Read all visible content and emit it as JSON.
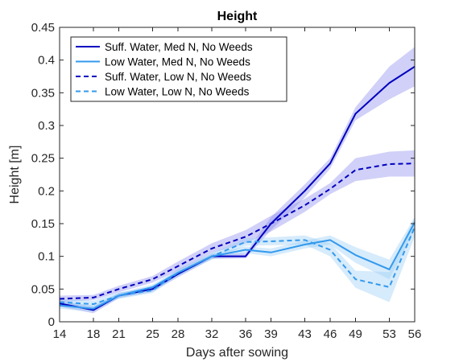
{
  "chart_data": {
    "type": "line",
    "title": "Height",
    "xlabel": "Days after sowing",
    "ylabel": "Height [m]",
    "xlim": [
      14,
      56
    ],
    "ylim": [
      0,
      0.45
    ],
    "xticks": [
      14,
      18,
      21,
      25,
      28,
      32,
      36,
      39,
      43,
      46,
      49,
      53,
      56
    ],
    "yticks": [
      0,
      0.05,
      0.1,
      0.15,
      0.2,
      0.25,
      0.3,
      0.35,
      0.4,
      0.45
    ],
    "grid": false,
    "legend_position": "top-left",
    "x": [
      14,
      18,
      21,
      25,
      28,
      32,
      36,
      39,
      43,
      46,
      49,
      53,
      56
    ],
    "series": [
      {
        "name": "Suff. Water, Med N, No Weeds",
        "color": "#0000c0",
        "line_style": "solid",
        "band_color": "#8a8aee",
        "values": [
          0.028,
          0.018,
          0.04,
          0.05,
          0.073,
          0.1,
          0.1,
          0.15,
          0.2,
          0.242,
          0.318,
          0.365,
          0.39
        ],
        "lower": [
          0.023,
          0.013,
          0.036,
          0.046,
          0.068,
          0.096,
          0.097,
          0.14,
          0.19,
          0.234,
          0.308,
          0.34,
          0.36
        ],
        "upper": [
          0.033,
          0.023,
          0.044,
          0.054,
          0.078,
          0.104,
          0.105,
          0.16,
          0.21,
          0.25,
          0.328,
          0.39,
          0.42
        ]
      },
      {
        "name": "Low Water, Med N, No Weeds",
        "color": "#3399ee",
        "line_style": "solid",
        "band_color": "#99ccf5",
        "values": [
          0.025,
          0.02,
          0.04,
          0.053,
          0.075,
          0.1,
          0.11,
          0.106,
          0.118,
          0.125,
          0.102,
          0.08,
          0.152
        ],
        "lower": [
          0.02,
          0.015,
          0.036,
          0.049,
          0.07,
          0.096,
          0.105,
          0.1,
          0.112,
          0.118,
          0.09,
          0.065,
          0.14
        ],
        "upper": [
          0.03,
          0.025,
          0.044,
          0.057,
          0.08,
          0.104,
          0.115,
          0.112,
          0.124,
          0.132,
          0.114,
          0.095,
          0.16
        ]
      },
      {
        "name": "Suff. Water, Low N, No Weeds",
        "color": "#0000c0",
        "line_style": "dashed",
        "band_color": "#8a8aee",
        "values": [
          0.035,
          0.037,
          0.05,
          0.065,
          0.085,
          0.112,
          0.13,
          0.15,
          0.178,
          0.203,
          0.232,
          0.241,
          0.242
        ],
        "lower": [
          0.03,
          0.033,
          0.045,
          0.06,
          0.078,
          0.105,
          0.12,
          0.138,
          0.168,
          0.195,
          0.215,
          0.222,
          0.222
        ],
        "upper": [
          0.04,
          0.041,
          0.055,
          0.07,
          0.092,
          0.12,
          0.14,
          0.162,
          0.188,
          0.212,
          0.25,
          0.26,
          0.262
        ]
      },
      {
        "name": "Low Water, Low N, No Weeds",
        "color": "#3399ee",
        "line_style": "dashed",
        "band_color": "#99ccf5",
        "values": [
          0.03,
          0.027,
          0.04,
          0.048,
          0.075,
          0.1,
          0.122,
          0.123,
          0.125,
          0.11,
          0.065,
          0.053,
          0.145
        ],
        "lower": [
          0.025,
          0.022,
          0.035,
          0.044,
          0.07,
          0.095,
          0.116,
          0.117,
          0.118,
          0.1,
          0.052,
          0.03,
          0.13
        ],
        "upper": [
          0.035,
          0.032,
          0.045,
          0.052,
          0.08,
          0.105,
          0.128,
          0.129,
          0.132,
          0.12,
          0.078,
          0.076,
          0.16
        ]
      }
    ]
  }
}
